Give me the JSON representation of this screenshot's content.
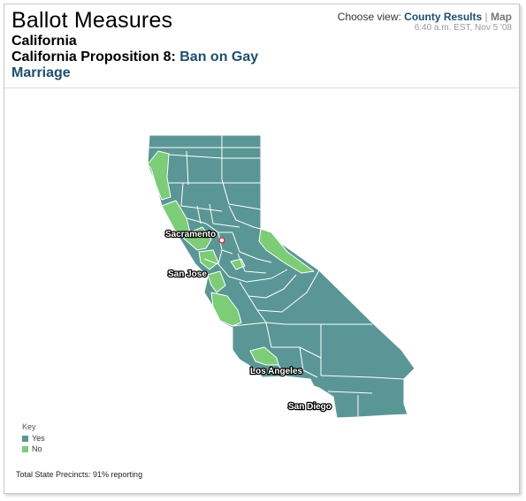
{
  "header": {
    "title": "Ballot Measures",
    "state": "California",
    "proposition_prefix": "California Proposition 8:",
    "proposition_link": "Ban on Gay Marriage"
  },
  "view": {
    "label": "Choose view:",
    "county_results": "County Results",
    "separator": "|",
    "map": "Map",
    "timestamp": "6:40 a.m. EST, Nov 5 '08"
  },
  "map": {
    "cities": [
      "Sacramento",
      "San Jose",
      "Los Angeles",
      "San Diego"
    ]
  },
  "key": {
    "heading": "Key",
    "items": [
      {
        "label": "Yes",
        "color": "#5a9695"
      },
      {
        "label": "No",
        "color": "#7dcc78"
      }
    ]
  },
  "footer": {
    "text": "Total State Precincts: 91% reporting"
  },
  "colors": {
    "yes": "#5a9695",
    "no": "#7dcc78",
    "border": "#ffffff"
  }
}
